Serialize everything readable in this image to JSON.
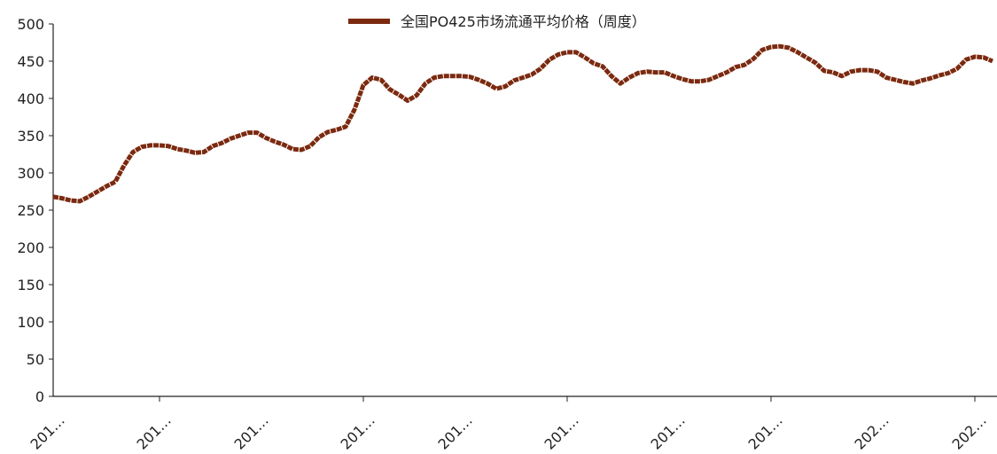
{
  "chart_data": {
    "type": "line",
    "categories": [
      "201…",
      null,
      null,
      null,
      null,
      null,
      null,
      null,
      null,
      null,
      null,
      null,
      "201…",
      null,
      null,
      null,
      null,
      null,
      null,
      null,
      null,
      null,
      null,
      "201…",
      null,
      null,
      null,
      null,
      null,
      null,
      null,
      null,
      null,
      null,
      null,
      "201…",
      null,
      null,
      null,
      null,
      null,
      null,
      null,
      null,
      null,
      null,
      "201…",
      null,
      null,
      null,
      null,
      null,
      null,
      null,
      null,
      null,
      null,
      null,
      "201…",
      null,
      null,
      null,
      null,
      null,
      null,
      null,
      null,
      null,
      null,
      null,
      "201…",
      null,
      null,
      null,
      null,
      null,
      null,
      null,
      null,
      null,
      null,
      "201…",
      null,
      null,
      null,
      null,
      null,
      null,
      null,
      null,
      null,
      null,
      null,
      "202…",
      null,
      null,
      null,
      null,
      null,
      null,
      null,
      null,
      null,
      null,
      "202…",
      null,
      null
    ],
    "series": [
      {
        "name": "全国PO425市场流通平均价格（周度）",
        "color": "#7b2a10",
        "values": [
          268,
          266,
          263,
          262,
          268,
          275,
          282,
          288,
          310,
          328,
          335,
          337,
          337,
          336,
          332,
          330,
          327,
          328,
          336,
          340,
          346,
          350,
          354,
          354,
          347,
          342,
          338,
          332,
          331,
          336,
          348,
          355,
          358,
          362,
          385,
          418,
          428,
          425,
          412,
          405,
          397,
          404,
          420,
          428,
          430,
          430,
          430,
          429,
          425,
          420,
          413,
          416,
          424,
          428,
          432,
          440,
          452,
          459,
          462,
          462,
          455,
          447,
          443,
          430,
          420,
          428,
          434,
          436,
          435,
          435,
          430,
          426,
          423,
          423,
          425,
          430,
          435,
          442,
          445,
          453,
          465,
          469,
          470,
          468,
          462,
          455,
          448,
          437,
          435,
          430,
          436,
          438,
          438,
          436,
          428,
          425,
          422,
          420,
          424,
          427,
          431,
          434,
          440,
          452,
          456,
          455,
          450
        ]
      }
    ],
    "ylim": [
      0,
      500
    ],
    "yticks": [
      0,
      50,
      100,
      150,
      200,
      250,
      300,
      350,
      400,
      450,
      500
    ],
    "legend": "top"
  }
}
